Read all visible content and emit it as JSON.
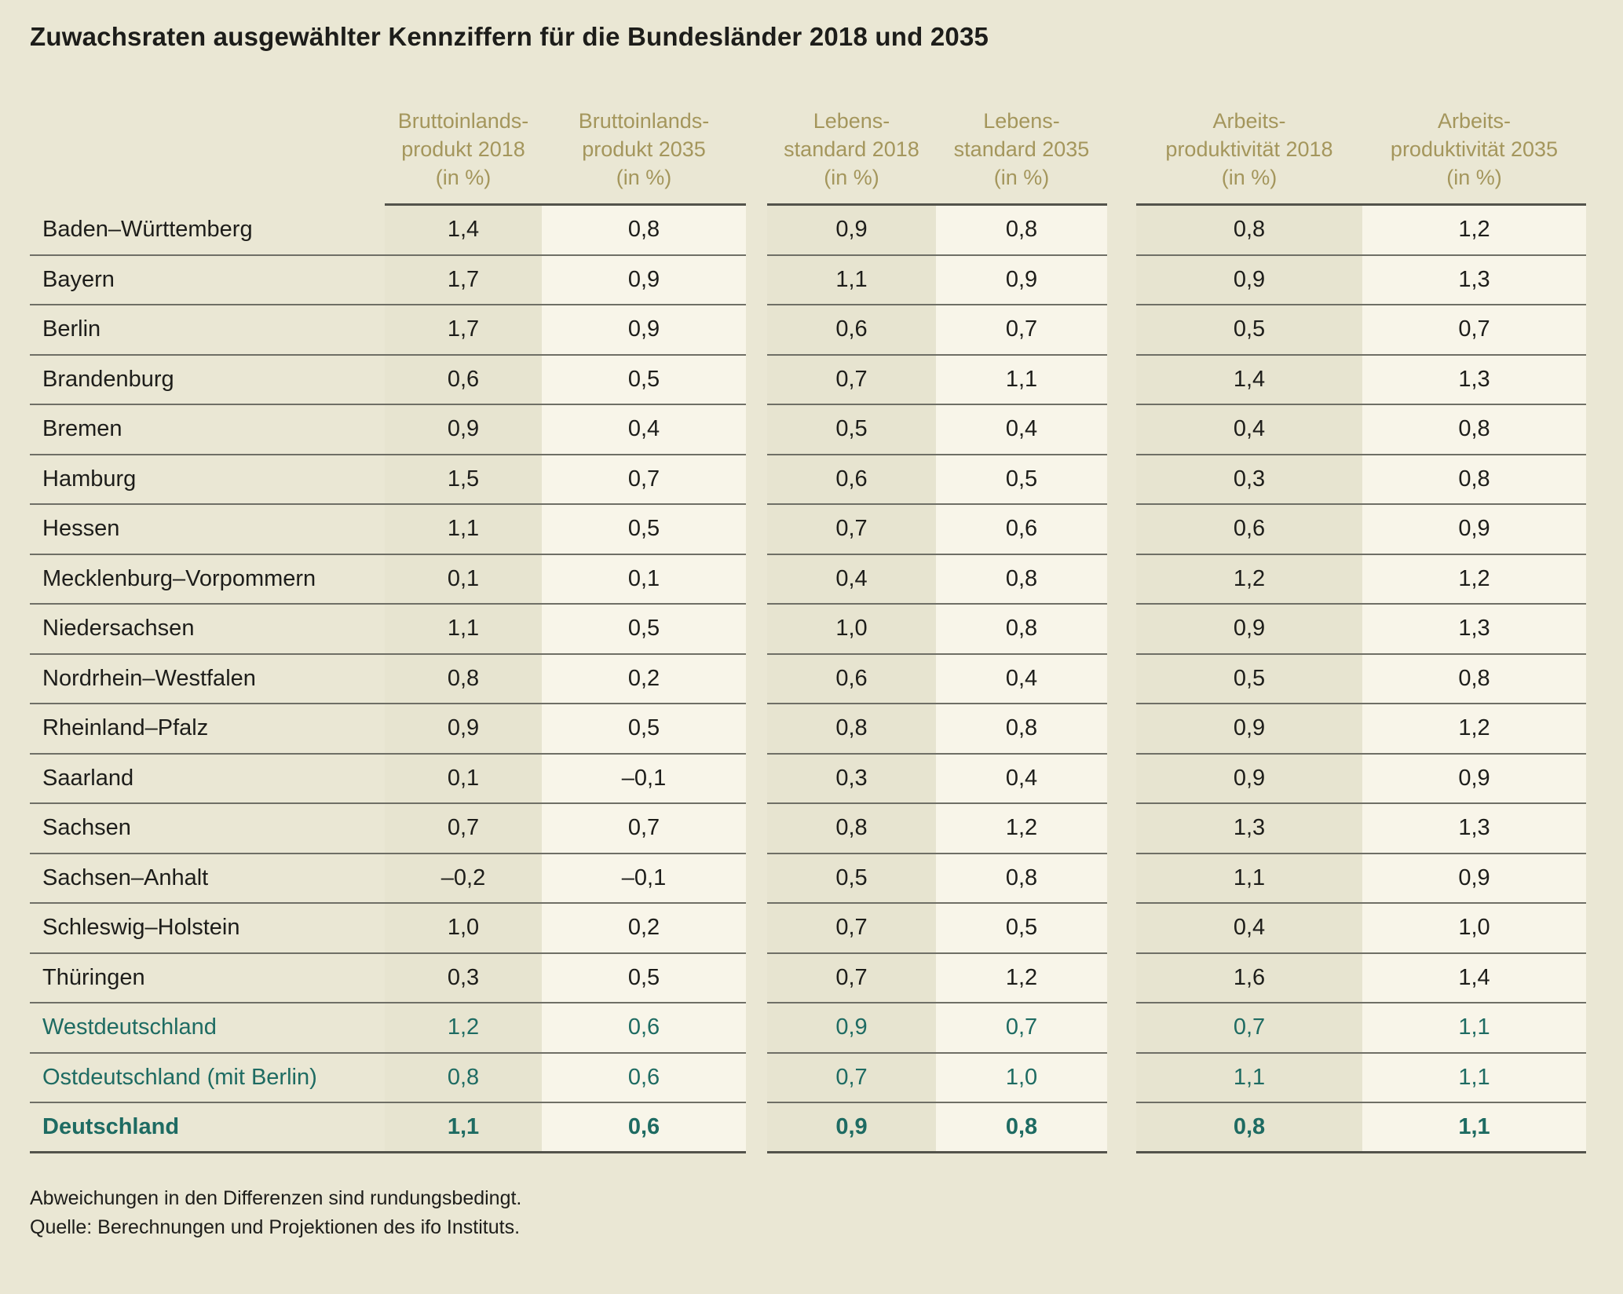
{
  "title": "Zuwachsraten ausgewählter Kennziffern für die Bundesländer 2018 und 2035",
  "chart_data": {
    "type": "table",
    "columns": [
      "Bruttoinlandsprodukt 2018 (in %)",
      "Bruttoinlandsprodukt 2035 (in %)",
      "Lebensstandard 2018 (in %)",
      "Lebensstandard 2035 (in %)",
      "Arbeitsproduktivität 2018 (in %)",
      "Arbeitsproduktivität 2035 (in %)"
    ],
    "column_header_lines": [
      [
        "Bruttoinlands-",
        "produkt 2018",
        "(in %)"
      ],
      [
        "Bruttoinlands-",
        "produkt 2035",
        "(in %)"
      ],
      [
        "Lebens-",
        "standard 2018",
        "(in %)"
      ],
      [
        "Lebens-",
        "standard 2035",
        "(in %)"
      ],
      [
        "Arbeits-",
        "produktivität 2018",
        "(in %)"
      ],
      [
        "Arbeits-",
        "produktivität 2035",
        "(in %)"
      ]
    ],
    "rows": [
      {
        "name": "Baden–Württemberg",
        "values": [
          "1,4",
          "0,8",
          "0,9",
          "0,8",
          "0,8",
          "1,2"
        ],
        "style": "state"
      },
      {
        "name": "Bayern",
        "values": [
          "1,7",
          "0,9",
          "1,1",
          "0,9",
          "0,9",
          "1,3"
        ],
        "style": "state"
      },
      {
        "name": "Berlin",
        "values": [
          "1,7",
          "0,9",
          "0,6",
          "0,7",
          "0,5",
          "0,7"
        ],
        "style": "state"
      },
      {
        "name": "Brandenburg",
        "values": [
          "0,6",
          "0,5",
          "0,7",
          "1,1",
          "1,4",
          "1,3"
        ],
        "style": "state"
      },
      {
        "name": "Bremen",
        "values": [
          "0,9",
          "0,4",
          "0,5",
          "0,4",
          "0,4",
          "0,8"
        ],
        "style": "state"
      },
      {
        "name": "Hamburg",
        "values": [
          "1,5",
          "0,7",
          "0,6",
          "0,5",
          "0,3",
          "0,8"
        ],
        "style": "state"
      },
      {
        "name": "Hessen",
        "values": [
          "1,1",
          "0,5",
          "0,7",
          "0,6",
          "0,6",
          "0,9"
        ],
        "style": "state"
      },
      {
        "name": "Mecklenburg–Vorpommern",
        "values": [
          "0,1",
          "0,1",
          "0,4",
          "0,8",
          "1,2",
          "1,2"
        ],
        "style": "state"
      },
      {
        "name": "Niedersachsen",
        "values": [
          "1,1",
          "0,5",
          "1,0",
          "0,8",
          "0,9",
          "1,3"
        ],
        "style": "state"
      },
      {
        "name": "Nordrhein–Westfalen",
        "values": [
          "0,8",
          "0,2",
          "0,6",
          "0,4",
          "0,5",
          "0,8"
        ],
        "style": "state"
      },
      {
        "name": "Rheinland–Pfalz",
        "values": [
          "0,9",
          "0,5",
          "0,8",
          "0,8",
          "0,9",
          "1,2"
        ],
        "style": "state"
      },
      {
        "name": "Saarland",
        "values": [
          "0,1",
          "–0,1",
          "0,3",
          "0,4",
          "0,9",
          "0,9"
        ],
        "style": "state"
      },
      {
        "name": "Sachsen",
        "values": [
          "0,7",
          "0,7",
          "0,8",
          "1,2",
          "1,3",
          "1,3"
        ],
        "style": "state"
      },
      {
        "name": "Sachsen–Anhalt",
        "values": [
          "–0,2",
          "–0,1",
          "0,5",
          "0,8",
          "1,1",
          "0,9"
        ],
        "style": "state"
      },
      {
        "name": "Schleswig–Holstein",
        "values": [
          "1,0",
          "0,2",
          "0,7",
          "0,5",
          "0,4",
          "1,0"
        ],
        "style": "state"
      },
      {
        "name": "Thüringen",
        "values": [
          "0,3",
          "0,5",
          "0,7",
          "1,2",
          "1,6",
          "1,4"
        ],
        "style": "state"
      },
      {
        "name": "Westdeutschland",
        "values": [
          "1,2",
          "0,6",
          "0,9",
          "0,7",
          "0,7",
          "1,1"
        ],
        "style": "aggregate"
      },
      {
        "name": "Ostdeutschland (mit Berlin)",
        "values": [
          "0,8",
          "0,6",
          "0,7",
          "1,0",
          "1,1",
          "1,1"
        ],
        "style": "aggregate"
      },
      {
        "name": "Deutschland",
        "values": [
          "1,1",
          "0,6",
          "0,9",
          "0,8",
          "0,8",
          "1,1"
        ],
        "style": "total"
      }
    ]
  },
  "footnotes": {
    "note": "Abweichungen in den Differenzen sind rundungsbedingt.",
    "source": "Quelle: Berechnungen und Projektionen des ifo Instituts."
  },
  "colors": {
    "background": "#eae7d4",
    "light_column": "#f8f5e9",
    "dark_column": "#e7e4d0",
    "header_text": "#a4965c",
    "aggregate_text": "#1e6b62",
    "body_text": "#1d1d1a",
    "row_line": "#6f6f66",
    "strong_line": "#53534b"
  }
}
